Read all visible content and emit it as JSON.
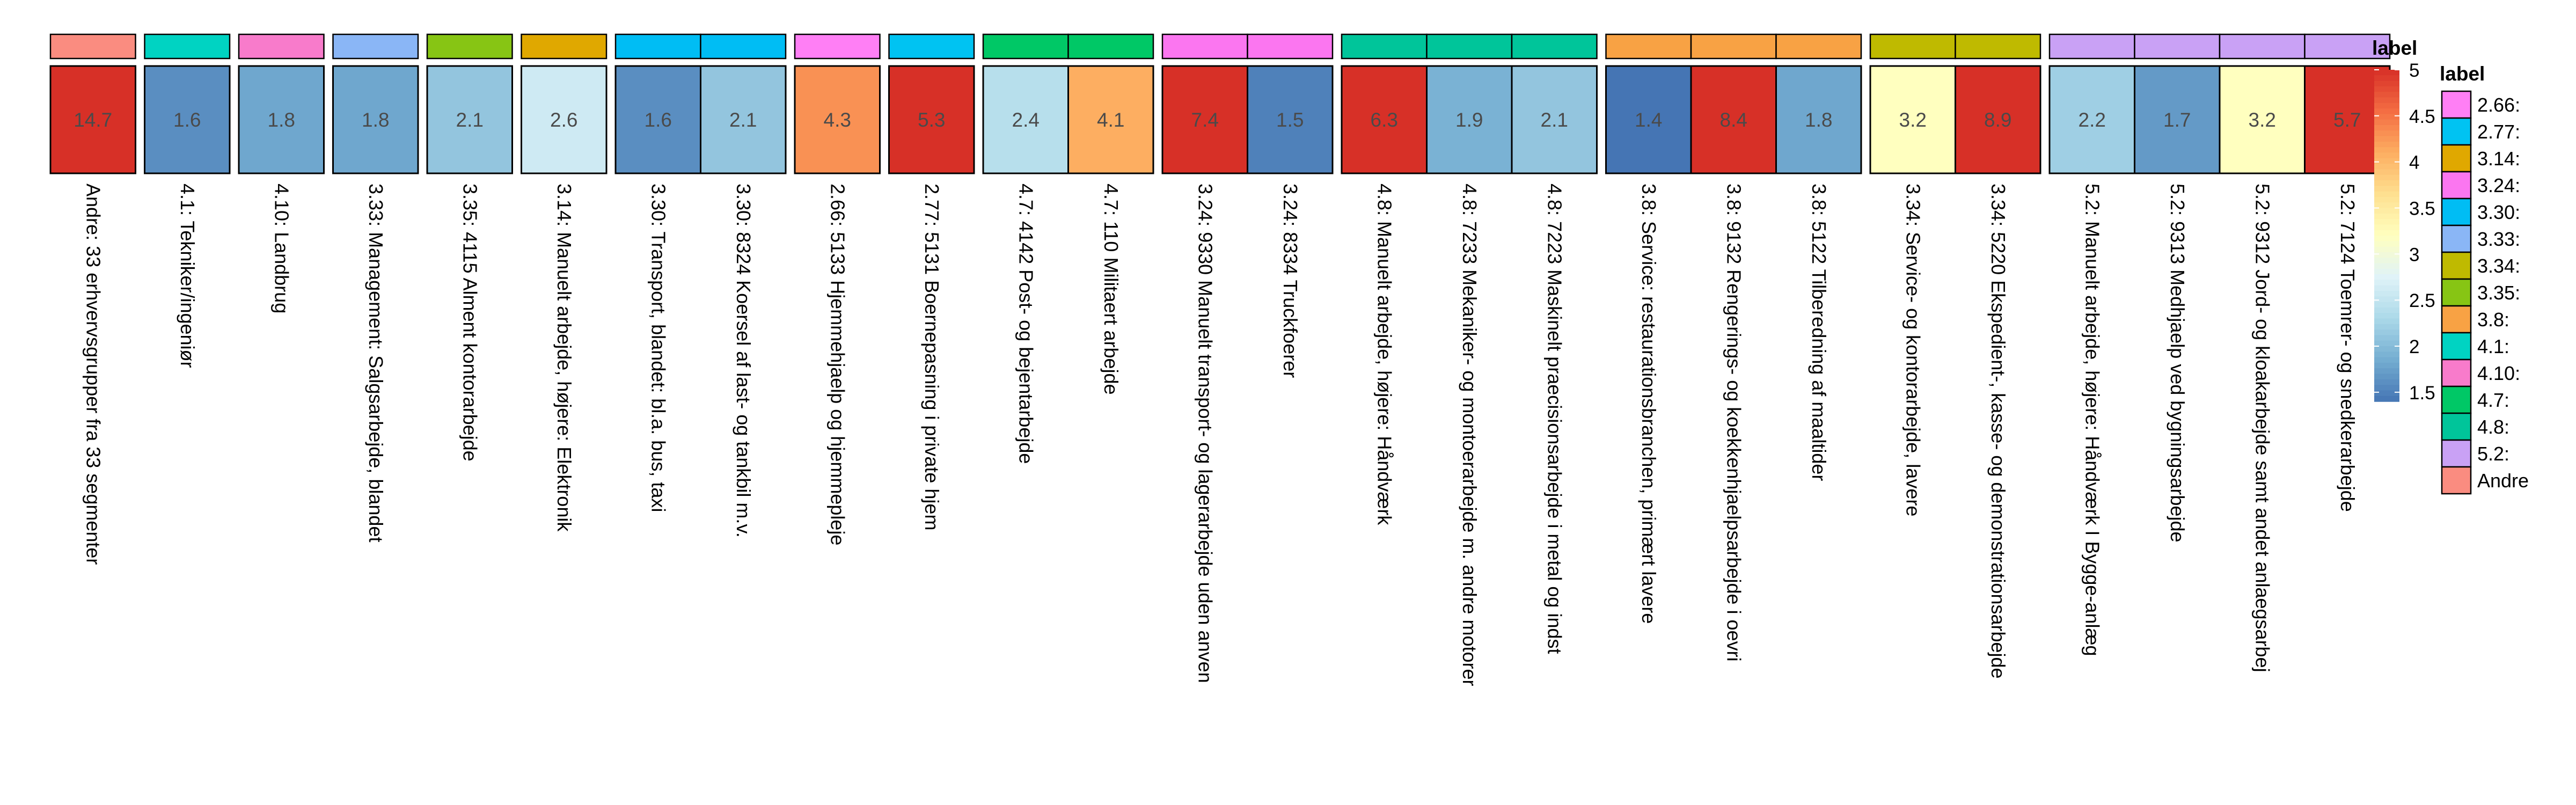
{
  "chart_data": {
    "type": "heatmap",
    "fill_legend": {
      "title": "label",
      "ticks": [
        "5",
        "4.5",
        "4",
        "3.5",
        "3",
        "2.5",
        "2",
        "1.5"
      ],
      "colors": [
        "#d73027",
        "#f46d43",
        "#fdae61",
        "#fee090",
        "#ffffbf",
        "#e0f3f8",
        "#abd9e9",
        "#74add1",
        "#4575b4"
      ]
    },
    "group_legend": {
      "title": "label",
      "items": [
        {
          "label": "2.66:",
          "color": "#ff7ff5"
        },
        {
          "label": "2.77:",
          "color": "#00c3f2"
        },
        {
          "label": "3.14:",
          "color": "#e0a800"
        },
        {
          "label": "3.24:",
          "color": "#fb76f0"
        },
        {
          "label": "3.30:",
          "color": "#00bdf4"
        },
        {
          "label": "3.33:",
          "color": "#8ab6f6"
        },
        {
          "label": "3.34:",
          "color": "#bfba00"
        },
        {
          "label": "3.35:",
          "color": "#87c514"
        },
        {
          "label": "3.8:",
          "color": "#f8a244"
        },
        {
          "label": "4.1:",
          "color": "#00d3c2"
        },
        {
          "label": "4.10:",
          "color": "#f87bcb"
        },
        {
          "label": "4.7:",
          "color": "#00c866"
        },
        {
          "label": "4.8:",
          "color": "#00c59a"
        },
        {
          "label": "5.2:",
          "color": "#c9a1f5"
        },
        {
          "label": "Andre",
          "color": "#fa8c80"
        }
      ]
    },
    "columns": [
      {
        "label": "Andre: 33 erhvervsgrupper fra 33 segmenter",
        "value": 14.7,
        "value_text": "14.7",
        "group": "Andre"
      },
      {
        "label": "4.1: Tekniker/ingeniør",
        "value": 1.6,
        "value_text": "1.6",
        "group": "4.1:"
      },
      {
        "label": "4.10: Landbrug",
        "value": 1.8,
        "value_text": "1.8",
        "group": "4.10:"
      },
      {
        "label": "3.33: Management: Salgsarbejde, blandet",
        "value": 1.8,
        "value_text": "1.8",
        "group": "3.33:"
      },
      {
        "label": "3.35: 4115 Alment kontorarbejde",
        "value": 2.1,
        "value_text": "2.1",
        "group": "3.35:"
      },
      {
        "label": "3.14: Manuelt arbejde, højere: Elektronik",
        "value": 2.6,
        "value_text": "2.6",
        "group": "3.14:"
      },
      {
        "label": "3.30: Transport, blandet: bl.a. bus, taxi",
        "value": 1.6,
        "value_text": "1.6",
        "group": "3.30:"
      },
      {
        "label": "3.30: 8324 Koersel af last- og tankbil m.v.",
        "value": 2.1,
        "value_text": "2.1",
        "group": "3.30:"
      },
      {
        "label": "2.66: 5133 Hjemmehjaelp og hjemmepleje",
        "value": 4.3,
        "value_text": "4.3",
        "group": "2.66:"
      },
      {
        "label": "2.77: 5131 Boernepasning i private hjem",
        "value": 5.3,
        "value_text": "5.3",
        "group": "2.77:"
      },
      {
        "label": "4.7: 4142 Post- og bejentarbejde",
        "value": 2.4,
        "value_text": "2.4",
        "group": "4.7:"
      },
      {
        "label": "4.7: 110 Militaert arbejde",
        "value": 4.1,
        "value_text": "4.1",
        "group": "4.7:"
      },
      {
        "label": "3.24: 9330 Manuelt transport- og lagerarbejde uden anven",
        "value": 7.4,
        "value_text": "7.4",
        "group": "3.24:"
      },
      {
        "label": "3.24: 8334 Truckfoerer",
        "value": 1.5,
        "value_text": "1.5",
        "group": "3.24:"
      },
      {
        "label": "4.8: Manuelt arbejde, højere: Håndværk",
        "value": 6.3,
        "value_text": "6.3",
        "group": "4.8:"
      },
      {
        "label": "4.8: 7233 Mekaniker- og montoerarbejde m. andre motorer",
        "value": 1.9,
        "value_text": "1.9",
        "group": "4.8:"
      },
      {
        "label": "4.8: 7223 Maskinelt praecisionsarbejde i metal og indst",
        "value": 2.1,
        "value_text": "2.1",
        "group": "4.8:"
      },
      {
        "label": "3.8: Service: restaurationsbranchen, primært lavere",
        "value": 1.4,
        "value_text": "1.4",
        "group": "3.8:"
      },
      {
        "label": "3.8: 9132 Rengerings- og koekkenhjaelpsarbejde i oevri",
        "value": 8.4,
        "value_text": "8.4",
        "group": "3.8:"
      },
      {
        "label": "3.8: 5122 Tilberedning af maaltider",
        "value": 1.8,
        "value_text": "1.8",
        "group": "3.8:"
      },
      {
        "label": "3.34: Service- og kontorarbejde, lavere",
        "value": 3.2,
        "value_text": "3.2",
        "group": "3.34:"
      },
      {
        "label": "3.34: 5220 Ekspedient-, kasse- og demonstrationsarbejde",
        "value": 8.9,
        "value_text": "8.9",
        "group": "3.34:"
      },
      {
        "label": "5.2: Manuelt arbejde, højere: Håndværk I Bygge-anlæg",
        "value": 2.2,
        "value_text": "2.2",
        "group": "5.2:"
      },
      {
        "label": "5.2: 9313 Medhjaelp ved bygningsarbejde",
        "value": 1.7,
        "value_text": "1.7",
        "group": "5.2:"
      },
      {
        "label": "5.2: 9312 Jord- og kloakarbejde samt andet anlaegsarbej",
        "value": 3.2,
        "value_text": "3.2",
        "group": "5.2:"
      },
      {
        "label": "5.2: 7124 Toemrer- og snedkerarbejde",
        "value": 5.7,
        "value_text": "5.7",
        "group": "5.2:"
      }
    ]
  }
}
